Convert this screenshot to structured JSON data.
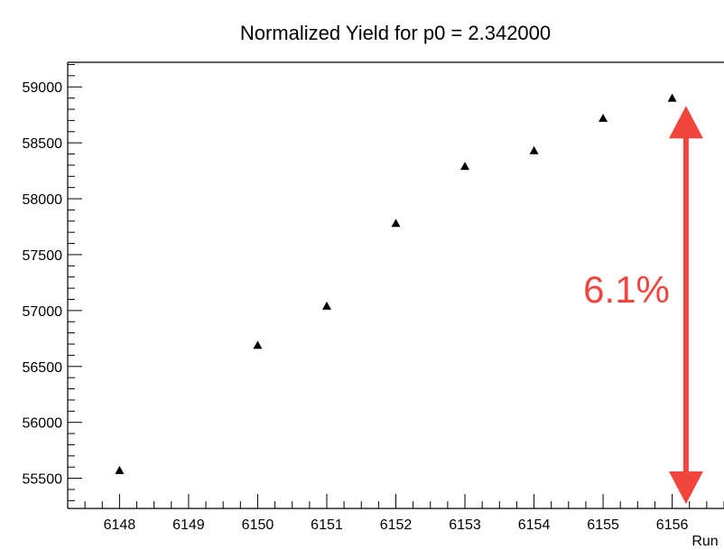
{
  "chart_data": {
    "type": "scatter",
    "title": "Normalized Yield for p0 = 2.342000",
    "xlabel": "Run",
    "ylabel": "",
    "xlim": [
      6147.25,
      6156.75
    ],
    "ylim": [
      55230,
      59220
    ],
    "x_ticks": [
      6148,
      6149,
      6150,
      6151,
      6152,
      6153,
      6154,
      6155,
      6156
    ],
    "y_ticks": [
      55500,
      56000,
      56500,
      57000,
      57500,
      58000,
      58500,
      59000
    ],
    "marker": "triangle",
    "grid": false,
    "series": [
      {
        "points": [
          {
            "x": 6148,
            "y": 55570
          },
          {
            "x": 6150,
            "y": 56690
          },
          {
            "x": 6151,
            "y": 57040
          },
          {
            "x": 6152,
            "y": 57780
          },
          {
            "x": 6153,
            "y": 58290
          },
          {
            "x": 6154,
            "y": 58430
          },
          {
            "x": 6155,
            "y": 58720
          },
          {
            "x": 6156,
            "y": 58900
          }
        ]
      }
    ],
    "annotation": {
      "text": "6.1%",
      "x": 6156.2,
      "y_from": 55270,
      "y_to": 58830,
      "color": "#f2453d"
    },
    "colors": {
      "marker": "#000000",
      "axis": "#000000",
      "annotation": "#f2453d"
    }
  }
}
